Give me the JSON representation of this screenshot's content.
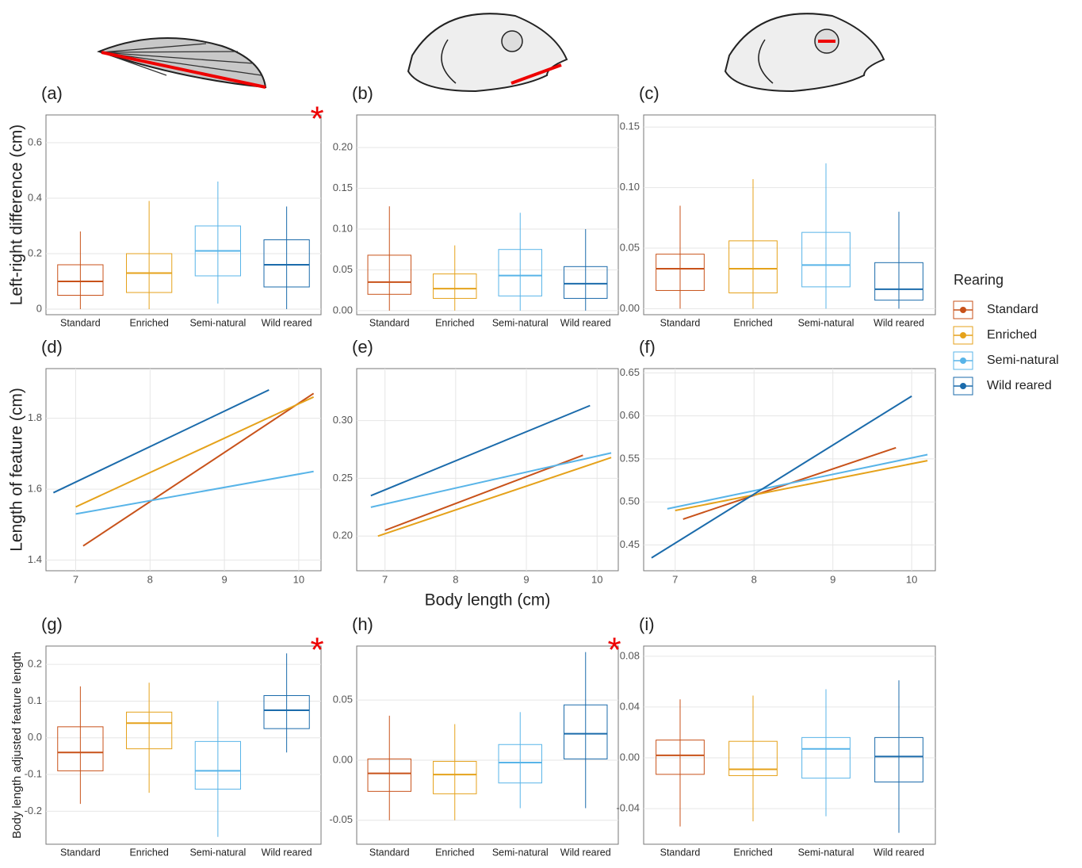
{
  "legend": {
    "title": "Rearing",
    "items": [
      {
        "name": "Standard",
        "color": "#c8521a"
      },
      {
        "name": "Enriched",
        "color": "#e5a21b"
      },
      {
        "name": "Semi-natural",
        "color": "#58b4e8"
      },
      {
        "name": "Wild reared",
        "color": "#1b6bab"
      }
    ]
  },
  "chart_data": [
    {
      "type": "box",
      "label": "(a)",
      "ylabel": "Left-right difference (cm)",
      "annotation": "*",
      "categories": [
        "Standard",
        "Enriched",
        "Semi-natural",
        "Wild reared"
      ],
      "ylim": [
        -0.02,
        0.7
      ],
      "yticks": [
        0,
        0.2,
        0.4,
        0.6
      ],
      "grid": true,
      "boxes": [
        {
          "color": "#c8521a",
          "min": 0,
          "q1": 0.05,
          "median": 0.1,
          "q3": 0.16,
          "max": 0.28
        },
        {
          "color": "#e5a21b",
          "min": 0,
          "q1": 0.06,
          "median": 0.13,
          "q3": 0.2,
          "max": 0.39
        },
        {
          "color": "#58b4e8",
          "min": 0.02,
          "q1": 0.12,
          "median": 0.21,
          "q3": 0.3,
          "max": 0.46
        },
        {
          "color": "#1b6bab",
          "min": 0,
          "q1": 0.08,
          "median": 0.16,
          "q3": 0.25,
          "max": 0.37
        }
      ]
    },
    {
      "type": "box",
      "label": "(b)",
      "categories": [
        "Standard",
        "Enriched",
        "Semi-natural",
        "Wild reared"
      ],
      "ylim": [
        -0.005,
        0.24
      ],
      "yticks": [
        {
          "value": 0,
          "label": "0.00"
        },
        {
          "value": 0.05,
          "label": "0.05"
        },
        {
          "value": 0.1,
          "label": "0.10"
        },
        {
          "value": 0.15,
          "label": "0.15"
        },
        {
          "value": 0.2,
          "label": "0.20"
        }
      ],
      "grid": true,
      "boxes": [
        {
          "color": "#c8521a",
          "min": 0,
          "q1": 0.02,
          "median": 0.035,
          "q3": 0.068,
          "max": 0.128
        },
        {
          "color": "#e5a21b",
          "min": 0,
          "q1": 0.015,
          "median": 0.027,
          "q3": 0.045,
          "max": 0.08
        },
        {
          "color": "#58b4e8",
          "min": 0,
          "q1": 0.018,
          "median": 0.043,
          "q3": 0.075,
          "max": 0.12
        },
        {
          "color": "#1b6bab",
          "min": 0,
          "q1": 0.015,
          "median": 0.033,
          "q3": 0.054,
          "max": 0.1
        }
      ]
    },
    {
      "type": "box",
      "label": "(c)",
      "categories": [
        "Standard",
        "Enriched",
        "Semi-natural",
        "Wild reared"
      ],
      "ylim": [
        -0.005,
        0.16
      ],
      "yticks": [
        {
          "value": 0,
          "label": "0.00"
        },
        {
          "value": 0.05,
          "label": "0.05"
        },
        {
          "value": 0.1,
          "label": "0.10"
        },
        {
          "value": 0.15,
          "label": "0.15"
        }
      ],
      "grid": true,
      "boxes": [
        {
          "color": "#c8521a",
          "min": 0,
          "q1": 0.015,
          "median": 0.033,
          "q3": 0.045,
          "max": 0.085
        },
        {
          "color": "#e5a21b",
          "min": 0,
          "q1": 0.013,
          "median": 0.033,
          "q3": 0.056,
          "max": 0.107
        },
        {
          "color": "#58b4e8",
          "min": 0,
          "q1": 0.018,
          "median": 0.036,
          "q3": 0.063,
          "max": 0.12
        },
        {
          "color": "#1b6bab",
          "min": 0,
          "q1": 0.007,
          "median": 0.016,
          "q3": 0.038,
          "max": 0.08
        }
      ]
    },
    {
      "type": "line",
      "label": "(d)",
      "ylabel": "Length of feature (cm)",
      "xlim": [
        6.6,
        10.3
      ],
      "xticks": [
        7,
        8,
        9,
        10
      ],
      "ylim": [
        1.37,
        1.94
      ],
      "yticks": [
        1.4,
        1.6,
        1.8
      ],
      "grid": true,
      "series": [
        {
          "name": "Standard",
          "color": "#c8521a",
          "x": [
            7.1,
            10.2
          ],
          "values": [
            1.44,
            1.87
          ]
        },
        {
          "name": "Enriched",
          "color": "#e5a21b",
          "x": [
            7.0,
            10.2
          ],
          "values": [
            1.55,
            1.86
          ]
        },
        {
          "name": "Semi-natural",
          "color": "#58b4e8",
          "x": [
            7.0,
            10.2
          ],
          "values": [
            1.53,
            1.65
          ]
        },
        {
          "name": "Wild reared",
          "color": "#1b6bab",
          "x": [
            6.7,
            9.6
          ],
          "values": [
            1.59,
            1.88
          ]
        }
      ]
    },
    {
      "type": "line",
      "label": "(e)",
      "xlabel": "Body length (cm)",
      "xlim": [
        6.6,
        10.3
      ],
      "xticks": [
        7,
        8,
        9,
        10
      ],
      "ylim": [
        0.17,
        0.345
      ],
      "yticks": [
        {
          "value": 0.2,
          "label": "0.20"
        },
        0.25,
        {
          "value": 0.3,
          "label": "0.30"
        }
      ],
      "grid": true,
      "series": [
        {
          "name": "Standard",
          "color": "#c8521a",
          "x": [
            7.0,
            9.8
          ],
          "values": [
            0.205,
            0.27
          ]
        },
        {
          "name": "Enriched",
          "color": "#e5a21b",
          "x": [
            6.9,
            10.2
          ],
          "values": [
            0.2,
            0.268
          ]
        },
        {
          "name": "Semi-natural",
          "color": "#58b4e8",
          "x": [
            6.8,
            10.2
          ],
          "values": [
            0.225,
            0.272
          ]
        },
        {
          "name": "Wild reared",
          "color": "#1b6bab",
          "x": [
            6.8,
            9.9
          ],
          "values": [
            0.235,
            0.313
          ]
        }
      ]
    },
    {
      "type": "line",
      "label": "(f)",
      "xlim": [
        6.6,
        10.3
      ],
      "xticks": [
        7,
        8,
        9,
        10
      ],
      "ylim": [
        0.42,
        0.655
      ],
      "yticks": [
        0.45,
        {
          "value": 0.5,
          "label": "0.50"
        },
        0.55,
        {
          "value": 0.6,
          "label": "0.60"
        },
        0.65
      ],
      "grid": true,
      "series": [
        {
          "name": "Standard",
          "color": "#c8521a",
          "x": [
            7.1,
            9.8
          ],
          "values": [
            0.48,
            0.563
          ]
        },
        {
          "name": "Enriched",
          "color": "#e5a21b",
          "x": [
            7.0,
            10.2
          ],
          "values": [
            0.49,
            0.548
          ]
        },
        {
          "name": "Semi-natural",
          "color": "#58b4e8",
          "x": [
            6.9,
            10.2
          ],
          "values": [
            0.492,
            0.555
          ]
        },
        {
          "name": "Wild reared",
          "color": "#1b6bab",
          "x": [
            6.7,
            10.0
          ],
          "values": [
            0.435,
            0.623
          ]
        }
      ]
    },
    {
      "type": "box",
      "label": "(g)",
      "ylabel": "Body length adjusted feature length",
      "annotation": "*",
      "categories": [
        "Standard",
        "Enriched",
        "Semi-natural",
        "Wild reared"
      ],
      "ylim": [
        -0.29,
        0.25
      ],
      "yticks": [
        -0.2,
        -0.1,
        {
          "value": 0,
          "label": "0.0"
        },
        0.1,
        0.2
      ],
      "grid": true,
      "boxes": [
        {
          "color": "#c8521a",
          "min": -0.18,
          "q1": -0.09,
          "median": -0.04,
          "q3": 0.03,
          "max": 0.14
        },
        {
          "color": "#e5a21b",
          "min": -0.15,
          "q1": -0.03,
          "median": 0.04,
          "q3": 0.07,
          "max": 0.15
        },
        {
          "color": "#58b4e8",
          "min": -0.27,
          "q1": -0.14,
          "median": -0.09,
          "q3": -0.01,
          "max": 0.1
        },
        {
          "color": "#1b6bab",
          "min": -0.04,
          "q1": 0.025,
          "median": 0.075,
          "q3": 0.115,
          "max": 0.23
        }
      ]
    },
    {
      "type": "box",
      "label": "(h)",
      "annotation": "*",
      "categories": [
        "Standard",
        "Enriched",
        "Semi-natural",
        "Wild reared"
      ],
      "ylim": [
        -0.07,
        0.095
      ],
      "yticks": [
        -0.05,
        {
          "value": 0,
          "label": "0.00"
        },
        0.05
      ],
      "grid": true,
      "boxes": [
        {
          "color": "#c8521a",
          "min": -0.05,
          "q1": -0.026,
          "median": -0.011,
          "q3": 0.001,
          "max": 0.037
        },
        {
          "color": "#e5a21b",
          "min": -0.05,
          "q1": -0.028,
          "median": -0.012,
          "q3": -0.001,
          "max": 0.03
        },
        {
          "color": "#58b4e8",
          "min": -0.04,
          "q1": -0.019,
          "median": -0.002,
          "q3": 0.013,
          "max": 0.04
        },
        {
          "color": "#1b6bab",
          "min": -0.04,
          "q1": 0.001,
          "median": 0.022,
          "q3": 0.046,
          "max": 0.09
        }
      ]
    },
    {
      "type": "box",
      "label": "(i)",
      "categories": [
        "Standard",
        "Enriched",
        "Semi-natural",
        "Wild reared"
      ],
      "ylim": [
        -0.068,
        0.088
      ],
      "yticks": [
        -0.04,
        {
          "value": 0,
          "label": "0.00"
        },
        0.04,
        0.08
      ],
      "grid": true,
      "boxes": [
        {
          "color": "#c8521a",
          "min": -0.054,
          "q1": -0.013,
          "median": 0.002,
          "q3": 0.014,
          "max": 0.046
        },
        {
          "color": "#e5a21b",
          "min": -0.05,
          "q1": -0.014,
          "median": -0.009,
          "q3": 0.013,
          "max": 0.049
        },
        {
          "color": "#58b4e8",
          "min": -0.046,
          "q1": -0.016,
          "median": 0.007,
          "q3": 0.016,
          "max": 0.054
        },
        {
          "color": "#1b6bab",
          "min": -0.059,
          "q1": -0.019,
          "median": 0.001,
          "q3": 0.016,
          "max": 0.061
        }
      ]
    }
  ]
}
